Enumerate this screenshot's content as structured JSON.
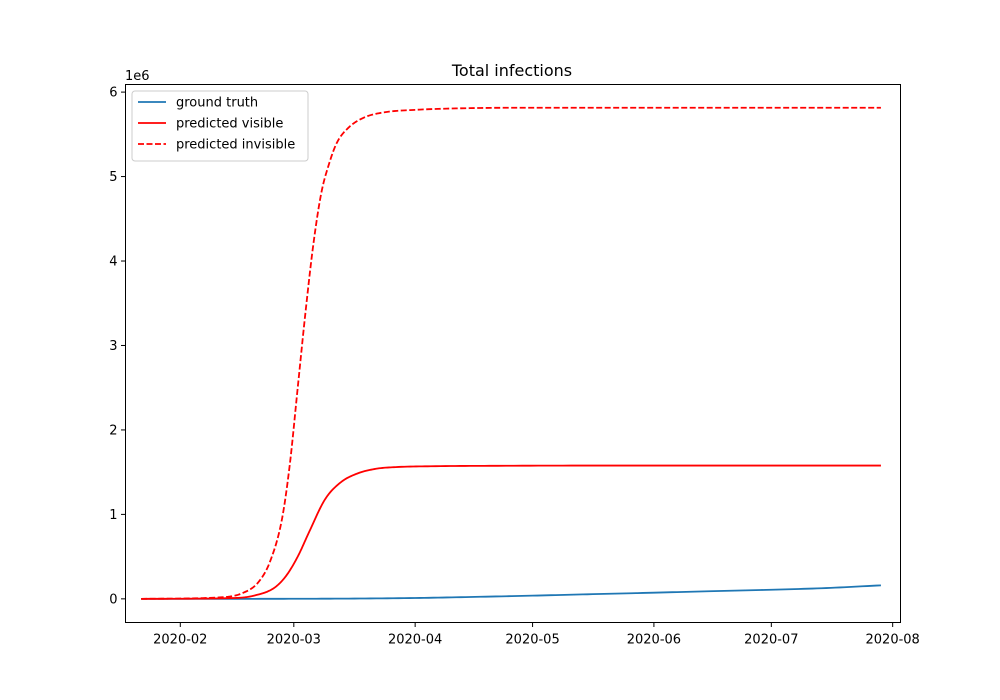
{
  "chart_data": {
    "type": "line",
    "title": "Total infections",
    "xlabel": "",
    "ylabel": "",
    "y_offset_label": "1e6",
    "xlim": [
      "2020-01-18",
      "2020-08-03"
    ],
    "ylim": [
      -0.28,
      6.09
    ],
    "x_ticks": [
      "2020-02-01",
      "2020-03-01",
      "2020-04-01",
      "2020-05-01",
      "2020-06-01",
      "2020-07-01",
      "2020-08-01"
    ],
    "x_tick_labels": [
      "2020-02",
      "2020-03",
      "2020-04",
      "2020-05",
      "2020-06",
      "2020-07",
      "2020-08"
    ],
    "y_ticks": [
      0,
      1,
      2,
      3,
      4,
      5,
      6
    ],
    "y_tick_labels": [
      "0",
      "1",
      "2",
      "3",
      "4",
      "5",
      "6"
    ],
    "grid": false,
    "legend_position": "top-left",
    "series": [
      {
        "name": "ground truth",
        "color": "#1f77b4",
        "style": "solid",
        "x": [
          "2020-01-22",
          "2020-02-15",
          "2020-03-01",
          "2020-03-15",
          "2020-04-01",
          "2020-04-15",
          "2020-05-01",
          "2020-05-15",
          "2020-06-01",
          "2020-06-15",
          "2020-07-01",
          "2020-07-15",
          "2020-07-29"
        ],
        "y": [
          0.0,
          0.0,
          0.001,
          0.003,
          0.01,
          0.022,
          0.038,
          0.054,
          0.073,
          0.09,
          0.108,
          0.128,
          0.16
        ]
      },
      {
        "name": "predicted visible",
        "color": "#ff0000",
        "style": "solid",
        "x": [
          "2020-01-22",
          "2020-02-15",
          "2020-02-20",
          "2020-02-25",
          "2020-02-28",
          "2020-03-02",
          "2020-03-05",
          "2020-03-09",
          "2020-03-13",
          "2020-03-17",
          "2020-03-22",
          "2020-03-27",
          "2020-04-05",
          "2020-04-20",
          "2020-05-15",
          "2020-07-29"
        ],
        "y": [
          0.0,
          0.01,
          0.04,
          0.13,
          0.27,
          0.5,
          0.8,
          1.18,
          1.38,
          1.48,
          1.54,
          1.56,
          1.57,
          1.575,
          1.578,
          1.578
        ]
      },
      {
        "name": "predicted invisible",
        "color": "#ff0000",
        "style": "dashed",
        "x": [
          "2020-01-22",
          "2020-02-12",
          "2020-02-17",
          "2020-02-21",
          "2020-02-24",
          "2020-02-27",
          "2020-02-29",
          "2020-03-02",
          "2020-03-04",
          "2020-03-06",
          "2020-03-08",
          "2020-03-10",
          "2020-03-12",
          "2020-03-15",
          "2020-03-19",
          "2020-03-24",
          "2020-04-01",
          "2020-04-15",
          "2020-05-01",
          "2020-07-29"
        ],
        "y": [
          0.0,
          0.02,
          0.07,
          0.2,
          0.45,
          0.95,
          1.6,
          2.5,
          3.4,
          4.2,
          4.8,
          5.15,
          5.4,
          5.58,
          5.7,
          5.76,
          5.79,
          5.81,
          5.815,
          5.815
        ]
      }
    ]
  }
}
